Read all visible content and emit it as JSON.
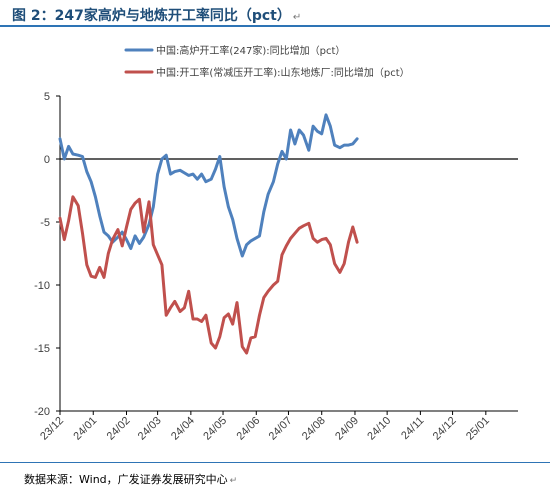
{
  "title": "图 2：247家高炉与地炼开工率同比（pct）",
  "source": "数据来源：Wind，广发证券发展研究中心",
  "mark": "↵",
  "chart_data": {
    "type": "line",
    "ylim": [
      -20,
      5
    ],
    "yticks": [
      5,
      0,
      -5,
      -10,
      -15,
      -20
    ],
    "xlim": [
      "2023-12-01",
      "2025-01-31"
    ],
    "xticks": [
      {
        "date": "2023-12-01",
        "label": "23/12"
      },
      {
        "date": "2024-01-01",
        "label": "24/01"
      },
      {
        "date": "2024-02-01",
        "label": "24/02"
      },
      {
        "date": "2024-03-01",
        "label": "24/03"
      },
      {
        "date": "2024-04-01",
        "label": "24/04"
      },
      {
        "date": "2024-05-01",
        "label": "24/05"
      },
      {
        "date": "2024-06-01",
        "label": "24/06"
      },
      {
        "date": "2024-07-01",
        "label": "24/07"
      },
      {
        "date": "2024-08-01",
        "label": "24/08"
      },
      {
        "date": "2024-09-01",
        "label": "24/09"
      },
      {
        "date": "2024-10-01",
        "label": "24/10"
      },
      {
        "date": "2024-11-01",
        "label": "24/11"
      },
      {
        "date": "2024-12-01",
        "label": "24/12"
      },
      {
        "date": "2025-01-01",
        "label": "25/01"
      }
    ],
    "grid": false,
    "legend_position": "top-center",
    "series": [
      {
        "name": "中国:高炉开工率(247家):同比增加（pct）",
        "color": "#4f81bd",
        "points": [
          [
            "2023-12-01",
            1.6
          ],
          [
            "2023-12-05",
            0.0
          ],
          [
            "2023-12-09",
            1.0
          ],
          [
            "2023-12-13",
            0.4
          ],
          [
            "2023-12-18",
            0.3
          ],
          [
            "2023-12-22",
            0.2
          ],
          [
            "2023-12-26",
            -1.0
          ],
          [
            "2023-12-30",
            -1.8
          ],
          [
            "2024-01-03",
            -3.0
          ],
          [
            "2024-01-07",
            -4.5
          ],
          [
            "2024-01-11",
            -5.8
          ],
          [
            "2024-01-15",
            -6.1
          ],
          [
            "2024-01-19",
            -6.6
          ],
          [
            "2024-01-24",
            -6.2
          ],
          [
            "2024-01-28",
            -5.8
          ],
          [
            "2024-02-01",
            -6.4
          ],
          [
            "2024-02-05",
            -7.1
          ],
          [
            "2024-02-09",
            -6.1
          ],
          [
            "2024-02-13",
            -6.7
          ],
          [
            "2024-02-17",
            -6.2
          ],
          [
            "2024-02-22",
            -5.2
          ],
          [
            "2024-02-26",
            -3.8
          ],
          [
            "2024-03-01",
            -1.2
          ],
          [
            "2024-03-05",
            0.0
          ],
          [
            "2024-03-09",
            0.3
          ],
          [
            "2024-03-13",
            -1.2
          ],
          [
            "2024-03-17",
            -1.0
          ],
          [
            "2024-03-22",
            -0.9
          ],
          [
            "2024-03-26",
            -1.1
          ],
          [
            "2024-03-30",
            -1.3
          ],
          [
            "2024-04-03",
            -1.2
          ],
          [
            "2024-04-07",
            -1.6
          ],
          [
            "2024-04-11",
            -1.2
          ],
          [
            "2024-04-15",
            -1.8
          ],
          [
            "2024-04-20",
            -1.6
          ],
          [
            "2024-04-24",
            -0.8
          ],
          [
            "2024-04-28",
            0.2
          ],
          [
            "2024-05-02",
            -2.2
          ],
          [
            "2024-05-06",
            -3.8
          ],
          [
            "2024-05-10",
            -4.8
          ],
          [
            "2024-05-14",
            -6.3
          ],
          [
            "2024-05-19",
            -7.7
          ],
          [
            "2024-05-23",
            -6.8
          ],
          [
            "2024-05-27",
            -6.5
          ],
          [
            "2024-05-31",
            -6.3
          ],
          [
            "2024-06-04",
            -6.1
          ],
          [
            "2024-06-08",
            -4.2
          ],
          [
            "2024-06-12",
            -2.8
          ],
          [
            "2024-06-17",
            -1.8
          ],
          [
            "2024-06-21",
            -0.4
          ],
          [
            "2024-06-25",
            0.6
          ],
          [
            "2024-06-29",
            0.0
          ],
          [
            "2024-07-03",
            2.3
          ],
          [
            "2024-07-07",
            1.2
          ],
          [
            "2024-07-11",
            2.3
          ],
          [
            "2024-07-15",
            1.9
          ],
          [
            "2024-07-20",
            0.7
          ],
          [
            "2024-07-24",
            2.6
          ],
          [
            "2024-07-28",
            2.2
          ],
          [
            "2024-08-01",
            2.0
          ],
          [
            "2024-08-05",
            3.5
          ],
          [
            "2024-08-09",
            2.6
          ],
          [
            "2024-08-13",
            1.1
          ],
          [
            "2024-08-18",
            0.9
          ],
          [
            "2024-08-22",
            1.1
          ],
          [
            "2024-08-26",
            1.1
          ],
          [
            "2024-08-30",
            1.2
          ],
          [
            "2024-09-03",
            1.6
          ]
        ]
      },
      {
        "name": "中国:开工率(常减压开工率):山东地炼厂:同比增加（pct）",
        "color": "#c0504d",
        "points": [
          [
            "2023-12-01",
            -4.7
          ],
          [
            "2023-12-05",
            -6.4
          ],
          [
            "2023-12-09",
            -4.9
          ],
          [
            "2023-12-13",
            -3.0
          ],
          [
            "2023-12-18",
            -3.7
          ],
          [
            "2023-12-22",
            -5.9
          ],
          [
            "2023-12-26",
            -8.4
          ],
          [
            "2023-12-30",
            -9.3
          ],
          [
            "2024-01-03",
            -9.4
          ],
          [
            "2024-01-07",
            -8.6
          ],
          [
            "2024-01-11",
            -9.4
          ],
          [
            "2024-01-15",
            -7.5
          ],
          [
            "2024-01-19",
            -6.4
          ],
          [
            "2024-01-24",
            -5.6
          ],
          [
            "2024-01-28",
            -6.9
          ],
          [
            "2024-02-01",
            -5.4
          ],
          [
            "2024-02-05",
            -4.0
          ],
          [
            "2024-02-09",
            -3.5
          ],
          [
            "2024-02-13",
            -3.2
          ],
          [
            "2024-02-17",
            -5.8
          ],
          [
            "2024-02-22",
            -3.4
          ],
          [
            "2024-02-26",
            -6.8
          ],
          [
            "2024-03-01",
            -7.6
          ],
          [
            "2024-03-05",
            -8.4
          ],
          [
            "2024-03-09",
            -12.4
          ],
          [
            "2024-03-13",
            -11.8
          ],
          [
            "2024-03-17",
            -11.3
          ],
          [
            "2024-03-22",
            -12.1
          ],
          [
            "2024-03-26",
            -11.8
          ],
          [
            "2024-03-30",
            -10.5
          ],
          [
            "2024-04-03",
            -12.7
          ],
          [
            "2024-04-07",
            -12.7
          ],
          [
            "2024-04-11",
            -12.9
          ],
          [
            "2024-04-15",
            -12.4
          ],
          [
            "2024-04-20",
            -14.6
          ],
          [
            "2024-04-24",
            -15.0
          ],
          [
            "2024-04-28",
            -14.1
          ],
          [
            "2024-05-02",
            -12.6
          ],
          [
            "2024-05-06",
            -12.3
          ],
          [
            "2024-05-10",
            -13.1
          ],
          [
            "2024-05-14",
            -11.4
          ],
          [
            "2024-05-19",
            -14.9
          ],
          [
            "2024-05-23",
            -15.4
          ],
          [
            "2024-05-27",
            -14.2
          ],
          [
            "2024-05-31",
            -14.1
          ],
          [
            "2024-06-04",
            -12.4
          ],
          [
            "2024-06-08",
            -11.0
          ],
          [
            "2024-06-12",
            -10.5
          ],
          [
            "2024-06-17",
            -10.0
          ],
          [
            "2024-06-21",
            -9.7
          ],
          [
            "2024-06-25",
            -7.6
          ],
          [
            "2024-06-29",
            -6.9
          ],
          [
            "2024-07-03",
            -6.3
          ],
          [
            "2024-07-07",
            -5.9
          ],
          [
            "2024-07-11",
            -5.5
          ],
          [
            "2024-07-15",
            -5.3
          ],
          [
            "2024-07-20",
            -5.1
          ],
          [
            "2024-07-24",
            -6.3
          ],
          [
            "2024-07-28",
            -6.6
          ],
          [
            "2024-08-01",
            -6.4
          ],
          [
            "2024-08-05",
            -6.3
          ],
          [
            "2024-08-09",
            -6.8
          ],
          [
            "2024-08-13",
            -8.3
          ],
          [
            "2024-08-18",
            -9.0
          ],
          [
            "2024-08-22",
            -8.3
          ],
          [
            "2024-08-26",
            -6.6
          ],
          [
            "2024-08-30",
            -5.4
          ],
          [
            "2024-09-03",
            -6.6
          ]
        ]
      }
    ]
  }
}
